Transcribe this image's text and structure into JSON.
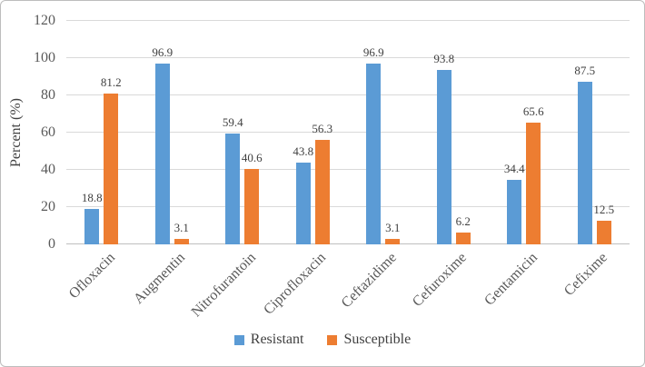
{
  "chart_data": {
    "type": "bar",
    "title": "",
    "xlabel": "",
    "ylabel": "Percent (%)",
    "ylim": [
      0,
      120
    ],
    "yticks": [
      0,
      20,
      40,
      60,
      80,
      100,
      120
    ],
    "grid": true,
    "data_labels": true,
    "legend_position": "bottom",
    "categories": [
      "Ofloxacin",
      "Augmentin",
      "Nitrofurantoin",
      "Ciprofloxacin",
      "Ceftazidime",
      "Cefuroxime",
      "Gentamicin",
      "Cefixime"
    ],
    "series": [
      {
        "name": "Resistant",
        "color": "#5B9BD5",
        "values": [
          18.8,
          96.9,
          59.4,
          43.8,
          96.9,
          93.8,
          34.4,
          87.5
        ]
      },
      {
        "name": "Susceptible",
        "color": "#ED7D31",
        "values": [
          81.2,
          3.1,
          40.6,
          56.3,
          3.1,
          6.2,
          65.6,
          12.5
        ]
      }
    ],
    "colors": {
      "gridline": "#d9d9d9",
      "axis_line": "#bfbfbf",
      "tick_text": "#595959",
      "label_text": "#404040"
    }
  }
}
